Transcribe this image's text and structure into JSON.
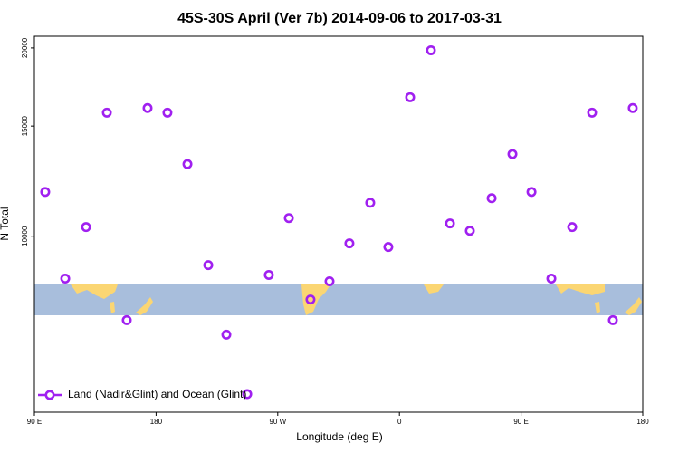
{
  "chart_data": {
    "type": "scatter",
    "title": "45S-30S April (Ver 7b)   2014-09-06 to 2017-03-31",
    "x_label": "Longitude (deg E)",
    "y_label": "N Total",
    "xlim": [
      90,
      540
    ],
    "xticks": [
      {
        "value": 90,
        "label": "90 E"
      },
      180,
      {
        "value": 270,
        "label": "90 W"
      },
      {
        "value": 360,
        "label": "0"
      },
      {
        "value": 450,
        "label": "90 E"
      },
      {
        "value": 540,
        "label": "180"
      }
    ],
    "ylim": [
      5230,
      20880
    ],
    "yticks": [
      10000,
      15000,
      20000
    ],
    "log_y": true,
    "legend": "bottom-left",
    "series": [
      {
        "name": "Land (Nadir&Glint) and Ocean (Glint)",
        "color": "#a020f0",
        "x": [
          98.0,
          112.8,
          128.2,
          143.6,
          158.3,
          173.7,
          188.4,
          203.2,
          218.6,
          232.0,
          247.4,
          263.4,
          278.2,
          294.2,
          308.3,
          323.0,
          338.4,
          351.8,
          367.9,
          383.3,
          397.4,
          412.1,
          428.2,
          443.6,
          457.7,
          472.4,
          487.8,
          502.5,
          517.9,
          532.6
        ],
        "values": [
          11770,
          8555,
          10340,
          15760,
          7340,
          16030,
          15760,
          13040,
          8990,
          6960,
          5590,
          8670,
          10690,
          7920,
          8470,
          9740,
          11310,
          9610,
          16680,
          19830,
          10480,
          10200,
          11500,
          13530,
          11770,
          8555,
          10340,
          15760,
          7340,
          16030
        ]
      }
    ]
  }
}
